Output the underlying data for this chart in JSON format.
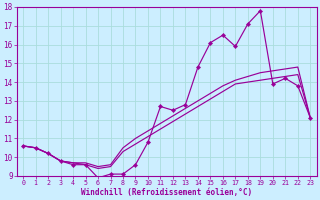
{
  "xlabel": "Windchill (Refroidissement éolien,°C)",
  "x_values": [
    0,
    1,
    2,
    3,
    4,
    5,
    6,
    7,
    8,
    9,
    10,
    11,
    12,
    13,
    14,
    15,
    16,
    17,
    18,
    19,
    20,
    21,
    22,
    23
  ],
  "line1_y": [
    10.6,
    10.5,
    10.2,
    9.8,
    9.6,
    9.6,
    8.9,
    9.1,
    9.1,
    9.6,
    10.8,
    12.7,
    12.5,
    12.8,
    14.8,
    16.1,
    16.5,
    15.9,
    17.1,
    17.8,
    13.9,
    14.2,
    13.8,
    12.1
  ],
  "line2_y": [
    10.6,
    10.5,
    10.2,
    9.8,
    9.7,
    9.6,
    9.4,
    9.5,
    10.3,
    10.7,
    11.1,
    11.5,
    11.9,
    12.3,
    12.7,
    13.1,
    13.5,
    13.9,
    14.0,
    14.1,
    14.2,
    14.3,
    14.4,
    12.1
  ],
  "line3_y": [
    10.6,
    10.5,
    10.2,
    9.8,
    9.7,
    9.7,
    9.5,
    9.6,
    10.5,
    11.0,
    11.4,
    11.8,
    12.2,
    12.6,
    13.0,
    13.4,
    13.8,
    14.1,
    14.3,
    14.5,
    14.6,
    14.7,
    14.8,
    12.1
  ],
  "color": "#990099",
  "bg_color": "#cceeff",
  "grid_color": "#aadddd",
  "ylim": [
    9,
    18
  ],
  "xlim": [
    -0.5,
    23.5
  ],
  "yticks": [
    9,
    10,
    11,
    12,
    13,
    14,
    15,
    16,
    17,
    18
  ],
  "xticks": [
    0,
    1,
    2,
    3,
    4,
    5,
    6,
    7,
    8,
    9,
    10,
    11,
    12,
    13,
    14,
    15,
    16,
    17,
    18,
    19,
    20,
    21,
    22,
    23
  ],
  "marker_size": 2.2,
  "linewidth": 0.85
}
